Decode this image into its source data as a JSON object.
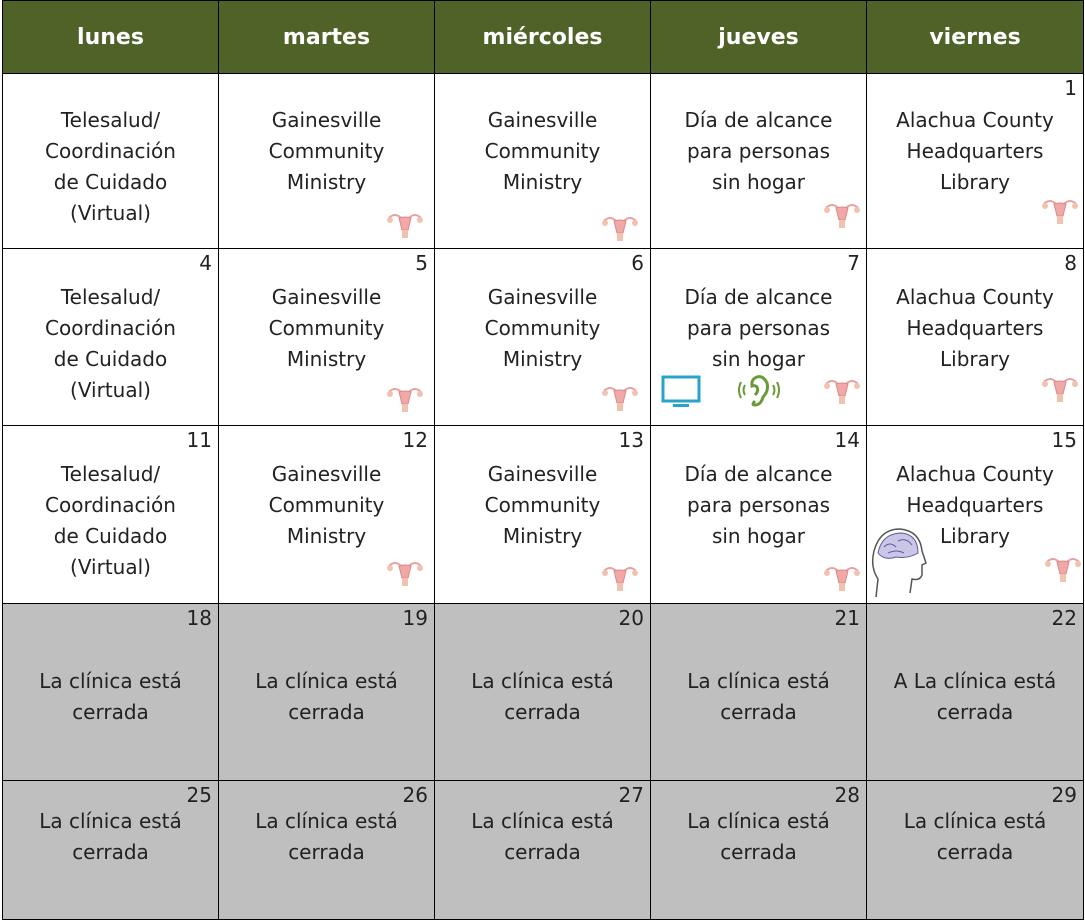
{
  "header": {
    "days": [
      "lunes",
      "martes",
      "miércoles",
      "jueves",
      "viernes"
    ]
  },
  "weeks": [
    {
      "cells": [
        {
          "lines": [
            "Telesalud/",
            "Coordinación",
            "de Cuidado",
            "(Virtual)"
          ]
        },
        {
          "lines": [
            "Gainesville",
            "Community",
            "Ministry"
          ]
        },
        {
          "lines": [
            "Gainesville",
            "Community",
            "Ministry"
          ]
        },
        {
          "lines": [
            "Día de alcance",
            "para personas",
            "sin hogar"
          ]
        },
        {
          "day": "1",
          "lines": [
            "Alachua County",
            "Headquarters",
            "Library"
          ]
        }
      ]
    },
    {
      "cells": [
        {
          "day": "4",
          "lines": [
            "Telesalud/",
            "Coordinación",
            "de Cuidado",
            "(Virtual)"
          ]
        },
        {
          "day": "5",
          "lines": [
            "Gainesville",
            "Community",
            "Ministry"
          ]
        },
        {
          "day": "6",
          "lines": [
            "Gainesville",
            "Community",
            "Ministry"
          ]
        },
        {
          "day": "7",
          "lines": [
            "Día de alcance",
            "para personas",
            "sin hogar"
          ]
        },
        {
          "day": "8",
          "lines": [
            "Alachua County",
            "Headquarters",
            "Library"
          ]
        }
      ]
    },
    {
      "cells": [
        {
          "day": "11",
          "lines": [
            "Telesalud/",
            "Coordinación",
            "de Cuidado",
            "(Virtual)"
          ]
        },
        {
          "day": "12",
          "lines": [
            "Gainesville",
            "Community",
            "Ministry"
          ]
        },
        {
          "day": "13",
          "lines": [
            "Gainesville",
            "Community",
            "Ministry"
          ]
        },
        {
          "day": "14",
          "lines": [
            "Día de alcance",
            "para personas",
            "sin hogar"
          ]
        },
        {
          "day": "15",
          "lines": [
            "Alachua County",
            "Headquarters",
            "Library"
          ]
        }
      ]
    },
    {
      "cells": [
        {
          "day": "18",
          "lines": [
            "La clínica está",
            "cerrada"
          ]
        },
        {
          "day": "19",
          "lines": [
            "La clínica está",
            "cerrada"
          ]
        },
        {
          "day": "20",
          "lines": [
            "La clínica está",
            "cerrada"
          ]
        },
        {
          "day": "21",
          "lines": [
            "La clínica está",
            "cerrada"
          ]
        },
        {
          "day": "22",
          "lines": [
            "A La clínica está",
            "cerrada"
          ]
        }
      ]
    },
    {
      "cells": [
        {
          "day": "25",
          "lines": [
            "La clínica está",
            "cerrada"
          ]
        },
        {
          "day": "26",
          "lines": [
            "La clínica está",
            "cerrada"
          ]
        },
        {
          "day": "27",
          "lines": [
            "La clínica está",
            "cerrada"
          ]
        },
        {
          "day": "28",
          "lines": [
            "La clínica está",
            "cerrada"
          ]
        },
        {
          "day": "29",
          "lines": [
            "La clínica está",
            "cerrada"
          ]
        }
      ]
    }
  ]
}
